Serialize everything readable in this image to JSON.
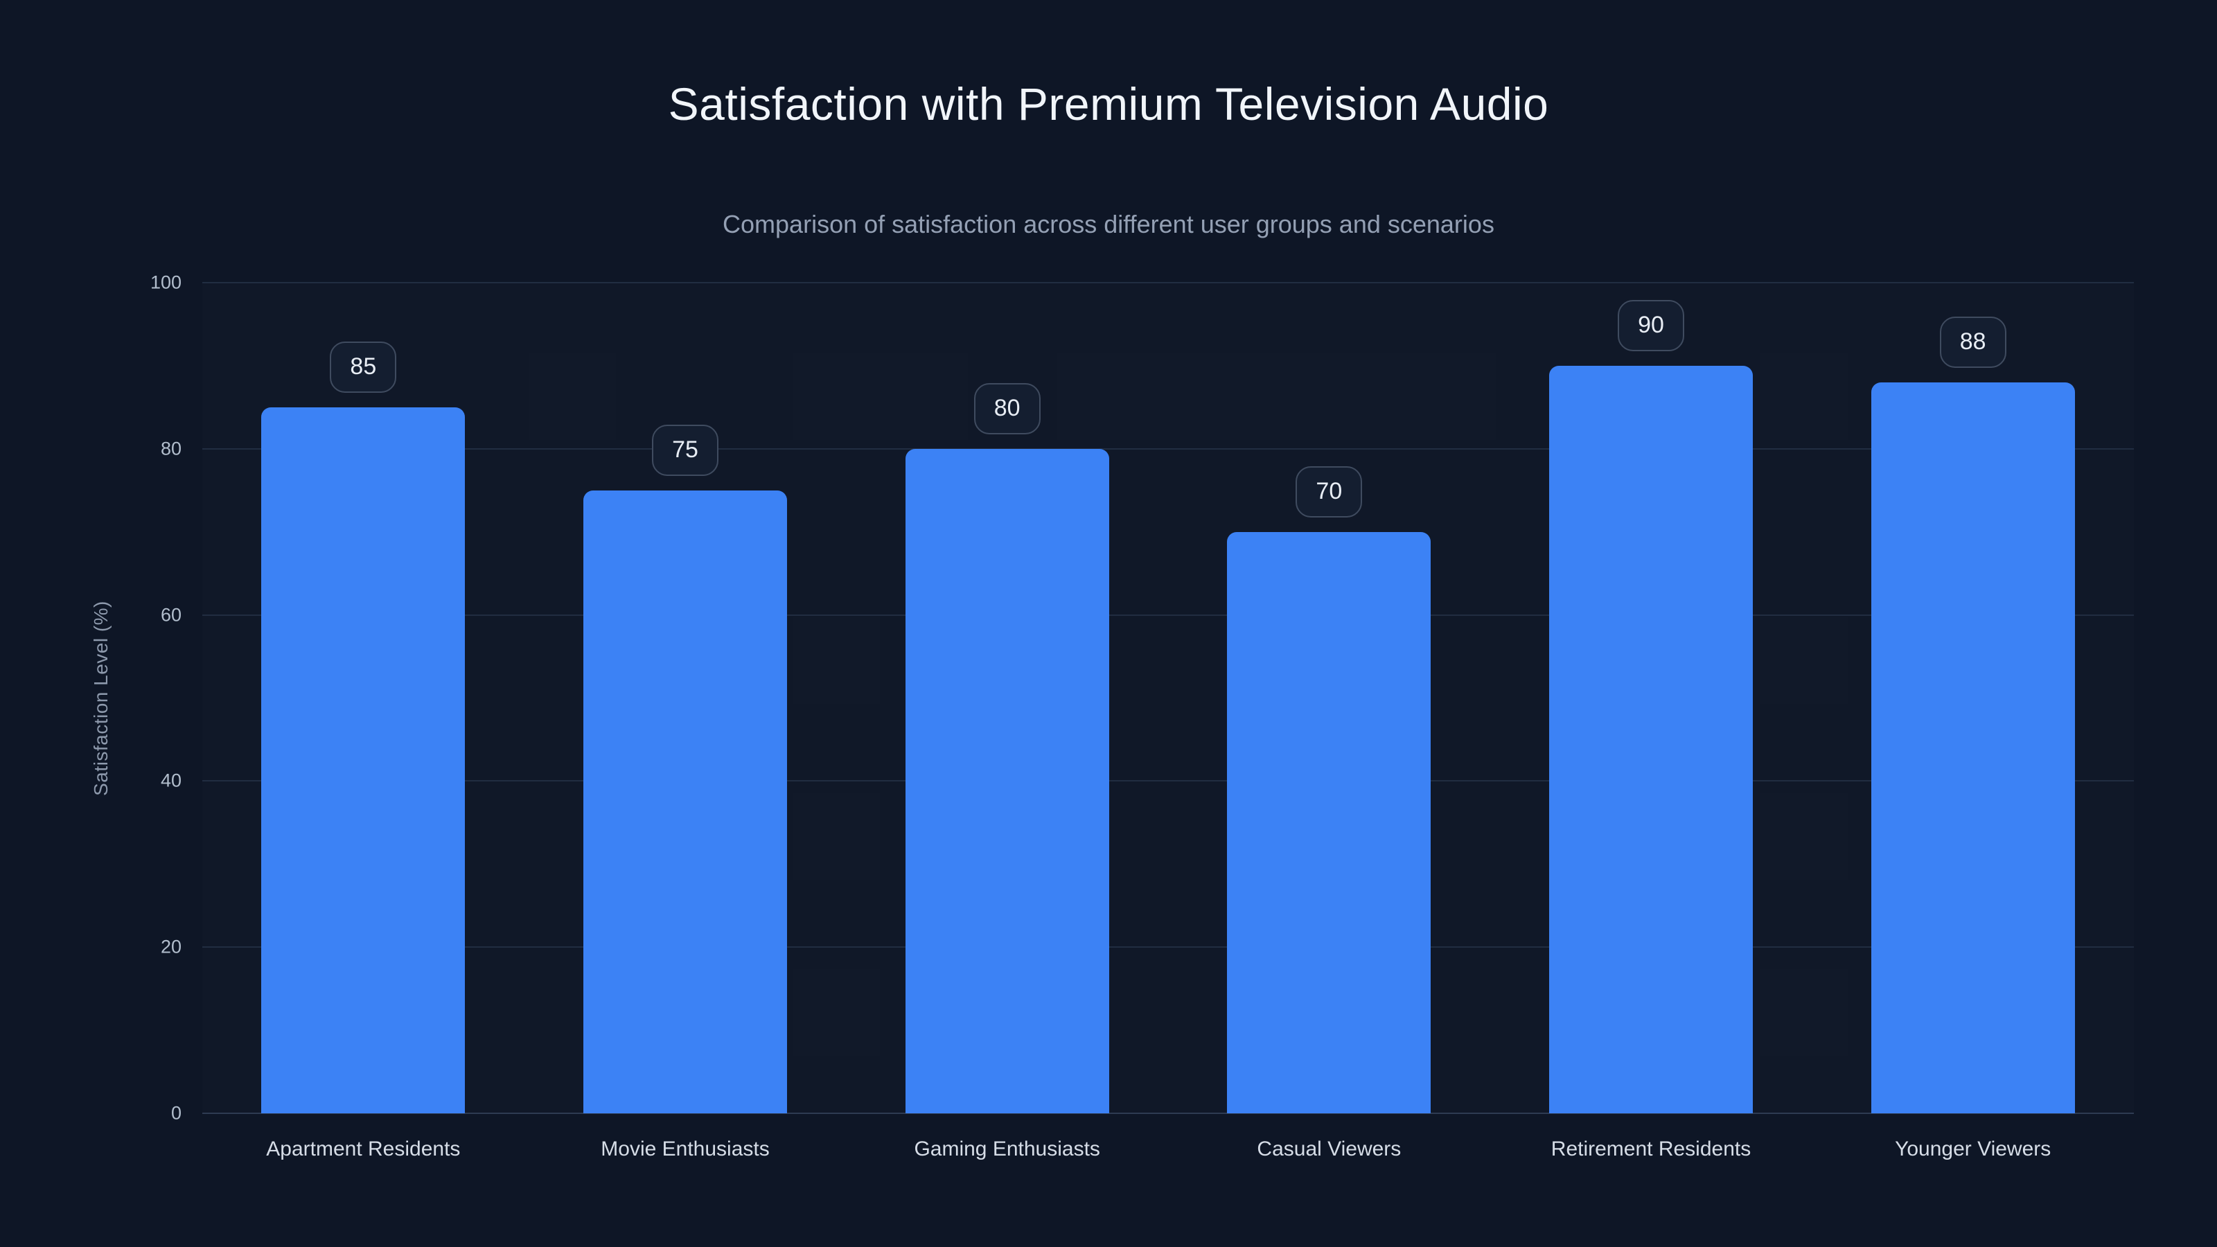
{
  "chart_data": {
    "type": "bar",
    "title": "Satisfaction with Premium Television Audio",
    "subtitle": "Comparison of satisfaction across different user groups and scenarios",
    "ylabel": "Satisfaction Level (%)",
    "xlabel": "",
    "categories": [
      "Apartment Residents",
      "Movie Enthusiasts",
      "Gaming Enthusiasts",
      "Casual Viewers",
      "Retirement Residents",
      "Younger Viewers"
    ],
    "values": [
      85,
      75,
      80,
      70,
      90,
      88
    ],
    "ylim": [
      0,
      100
    ],
    "yticks": [
      0,
      20,
      40,
      60,
      80,
      100
    ],
    "grid": true,
    "legend": false,
    "bar_labels_style": "rounded-badge-above-bar",
    "colors": {
      "background": "#0e1626",
      "bar": "#3c82f5",
      "gridline": "#212d41",
      "axis_line": "#2e3b52",
      "title": "#f1f5fa",
      "subtitle": "#94a0b4",
      "tick_label": "#b2becd",
      "category_label": "#d6dde7",
      "badge_border": "#3f4b5f",
      "badge_background": "#141e30",
      "badge_text": "#e8edf4"
    }
  }
}
